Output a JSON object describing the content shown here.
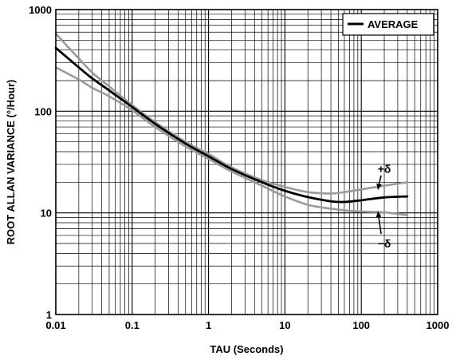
{
  "chart_data": {
    "type": "line",
    "title": "",
    "xlabel": "TAU (Seconds)",
    "ylabel": "ROOT ALLAN VARIANCE (°/Hour)",
    "xscale": "log",
    "yscale": "log",
    "xlim": [
      0.01,
      1000
    ],
    "ylim": [
      1,
      1000
    ],
    "grid": true,
    "legend_position": "top-right",
    "x_tick_labels": [
      "0.01",
      "0.1",
      "1",
      "10",
      "100",
      "1000"
    ],
    "y_tick_labels": [
      "1",
      "10",
      "100",
      "1000"
    ],
    "legend": [
      {
        "label": "AVERAGE",
        "color": "#000000"
      }
    ],
    "series": [
      {
        "name": "AVERAGE",
        "color": "#000000",
        "x": [
          0.01,
          0.02,
          0.03,
          0.05,
          0.1,
          0.2,
          0.5,
          1,
          2,
          5,
          10,
          20,
          40,
          60,
          100,
          200,
          400
        ],
        "y": [
          420,
          270,
          210,
          160,
          110,
          75,
          48,
          36,
          27,
          20,
          16.5,
          14.3,
          13,
          12.8,
          13.3,
          14.2,
          14.5
        ]
      },
      {
        "name": "",
        "color": "#999999",
        "x": [
          0.01,
          0.02,
          0.03,
          0.05,
          0.1,
          0.2,
          0.5,
          1,
          2,
          5,
          10,
          20,
          40,
          60,
          100,
          200,
          400
        ],
        "y": [
          580,
          330,
          240,
          175,
          115,
          78,
          50,
          38,
          28,
          21,
          18,
          16,
          15.5,
          16,
          17,
          18.5,
          20
        ]
      },
      {
        "name": "",
        "color": "#999999",
        "x": [
          0.01,
          0.02,
          0.03,
          0.05,
          0.1,
          0.2,
          0.5,
          1,
          2,
          5,
          10,
          20,
          40,
          60,
          100,
          200,
          400
        ],
        "y": [
          270,
          205,
          170,
          140,
          102,
          70,
          45,
          34,
          25.5,
          18.5,
          14.5,
          12,
          11,
          10.6,
          10.3,
          10.1,
          9.5
        ]
      }
    ],
    "annotations": [
      {
        "text": "+δ",
        "x": 200,
        "y": 27,
        "arrow_to": [
          150,
          17
        ]
      },
      {
        "text": "−δ",
        "x": 200,
        "y": 5.0,
        "arrow_to": [
          150,
          10.3
        ]
      }
    ]
  }
}
